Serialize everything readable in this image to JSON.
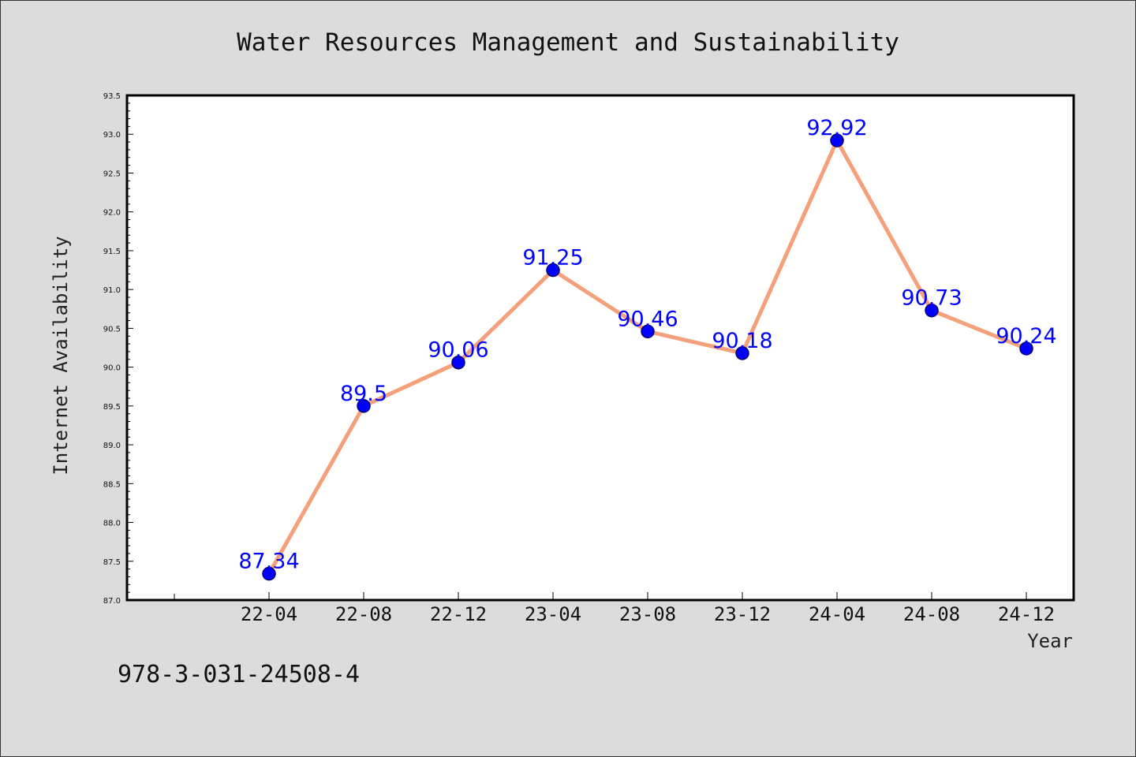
{
  "chart_data": {
    "type": "line",
    "title": "Water Resources Management and Sustainability",
    "xlabel": "Year",
    "ylabel": "Internet Availability",
    "categories": [
      "22-04",
      "22-08",
      "22-12",
      "23-04",
      "23-08",
      "23-12",
      "24-04",
      "24-08",
      "24-12"
    ],
    "series": [
      {
        "values": [
          87.34,
          89.5,
          90.06,
          91.25,
          90.46,
          90.18,
          92.92,
          90.73,
          90.24
        ],
        "labels": [
          "87.34",
          "89.5",
          "90.06",
          "91.25",
          "90.46",
          "90.18",
          "92.92",
          "90.73",
          "90.24"
        ],
        "line_color": "#f4a07a",
        "marker_color": "#0000ff"
      }
    ],
    "ylim": [
      87.0,
      93.5
    ],
    "yticks": [
      "87.0",
      "87.5",
      "88.0",
      "88.5",
      "89.0",
      "89.5",
      "90.0",
      "90.5",
      "91.0",
      "91.5",
      "92.0",
      "92.5",
      "93.0",
      "93.5"
    ],
    "grid": false,
    "legend": false
  },
  "footer": {
    "isbn": "978-3-031-24508-4"
  },
  "colors": {
    "background": "#dcdcdc",
    "plot_background": "#ffffff",
    "line": "#f4a07a",
    "marker": "#0000ff",
    "data_label": "#0000ff"
  }
}
